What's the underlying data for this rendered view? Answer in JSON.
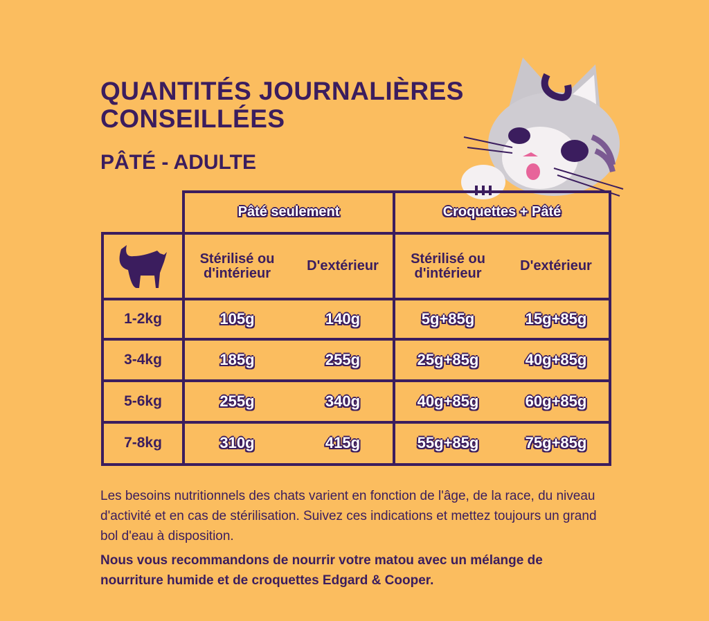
{
  "header": {
    "title": "QUANTITÉS JOURNALIÈRES CONSEILLÉES",
    "subtitle": "PÂTÉ - ADULTE"
  },
  "table": {
    "groups": [
      "Pâté seulement",
      "Croquettes + Pâté"
    ],
    "columns": [
      "Stérilisé ou d'intérieur",
      "D'extérieur",
      "Stérilisé ou d'intérieur",
      "D'extérieur"
    ],
    "rows": [
      [
        "1-2kg",
        "105g",
        "140g",
        "5g+85g",
        "15g+85g"
      ],
      [
        "3-4kg",
        "185g",
        "255g",
        "25g+85g",
        "40g+85g"
      ],
      [
        "5-6kg",
        "255g",
        "340g",
        "40g+85g",
        "60g+85g"
      ],
      [
        "7-8kg",
        "310g",
        "415g",
        "55g+85g",
        "75g+85g"
      ]
    ]
  },
  "notes": [
    "Les besoins nutritionnels des chats varient en fonction de l'âge, de la race, du niveau d'activité et en cas de stérilisation. Suivez ces indications et mettez toujours un grand bol d'eau à disposition.",
    "Nous vous recommandons de nourrir votre matou avec un mélange de nourriture humide et de croquettes Edgard & Cooper."
  ]
}
